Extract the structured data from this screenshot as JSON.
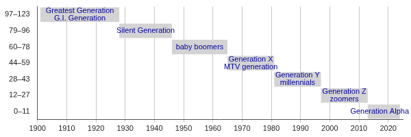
{
  "chart_data": {
    "type": "bar",
    "orientation": "horizontal",
    "categories": [
      "97–123",
      "79–96",
      "60–78",
      "44–59",
      "28–43",
      "12–27",
      "0–11"
    ],
    "values": [
      [
        1901,
        1928
      ],
      [
        1928,
        1946
      ],
      [
        1946,
        1965
      ],
      [
        1965,
        1981
      ],
      [
        1981,
        1997
      ],
      [
        1997,
        2013
      ],
      [
        2013,
        2024
      ]
    ],
    "bar_labels": [
      [
        "Greatest Generation",
        "G.I. Generation"
      ],
      [
        "Silent Generation"
      ],
      [
        "baby boomers"
      ],
      [
        "Generation X",
        "MTV generation"
      ],
      [
        "Generation Y",
        "millennials"
      ],
      [
        "Generation Z",
        "zoomers"
      ],
      [
        "Generation Alpha"
      ]
    ],
    "color": "#d3d3d3",
    "xlim": [
      1900,
      2025
    ],
    "xticks": [
      1900,
      1910,
      1920,
      1930,
      1940,
      1950,
      1960,
      1970,
      1980,
      1990,
      2000,
      2010,
      2020
    ],
    "grid": true
  }
}
